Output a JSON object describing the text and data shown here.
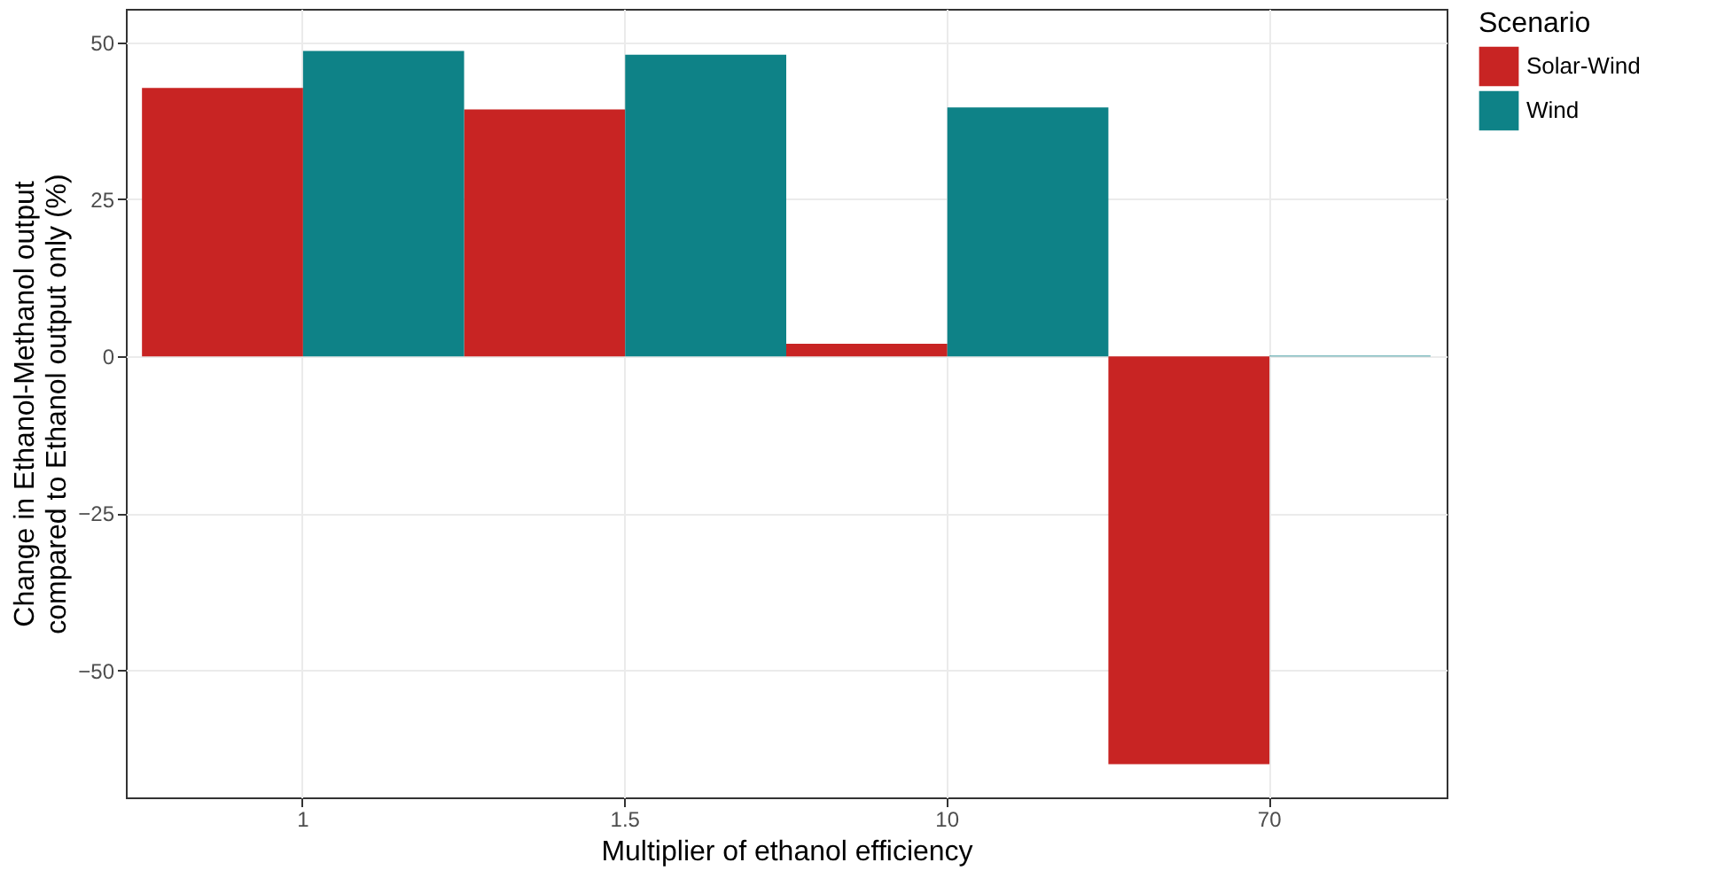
{
  "chart_data": {
    "type": "bar",
    "xlabel": "Multiplier of ethanol efficiency",
    "ylabel": "Change in Ethanol-Methanol output\ncompared to Ethanol output only (%)",
    "legend_title": "Scenario",
    "categories": [
      "1",
      "1.5",
      "10",
      "70"
    ],
    "series": [
      {
        "name": "Solar-Wind",
        "color": "#c82423",
        "values": [
          42.7,
          39.3,
          2.0,
          -64.9
        ]
      },
      {
        "name": "Wind",
        "color": "#0e8287",
        "values": [
          48.6,
          48.0,
          39.6,
          0.1
        ]
      }
    ],
    "ylim": [
      -70.2,
      55.3
    ],
    "yticks": [
      -50,
      -25,
      0,
      25,
      50
    ],
    "grid": true,
    "legend": "right"
  }
}
